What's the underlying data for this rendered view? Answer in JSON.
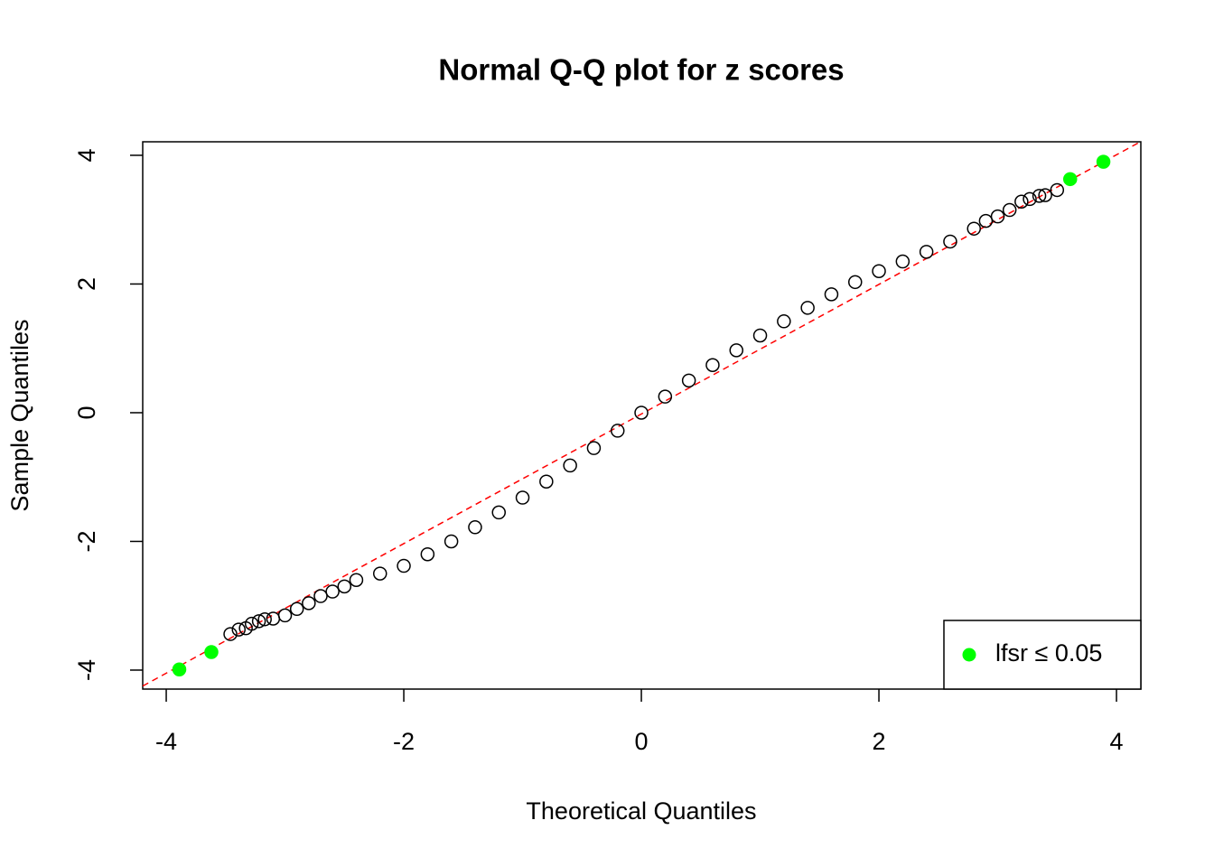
{
  "chart_data": {
    "type": "scatter",
    "title": "Normal Q-Q plot for z scores",
    "x_label": "Theoretical Quantiles",
    "y_label": "Sample Quantiles",
    "xlim": [
      -4.198,
      4.205
    ],
    "ylim": [
      -4.295,
      4.21
    ],
    "xticks": [
      -4,
      -2,
      0,
      2,
      4
    ],
    "yticks": [
      -4,
      -2,
      0,
      2,
      4
    ],
    "reference_line": {
      "intercept": -0.02,
      "slope": 1.007,
      "color": "#ff0000"
    },
    "legend_position": "bottomright",
    "series": [
      {
        "color": "#000000",
        "filled": false,
        "x": [
          -3.46,
          -3.39,
          -3.33,
          -3.28,
          -3.22,
          -3.17,
          -3.1,
          -3.0,
          -2.9,
          -2.8,
          -2.7,
          -2.6,
          -2.5,
          -2.4,
          -2.2,
          -2.0,
          -1.8,
          -1.6,
          -1.4,
          -1.2,
          -1.0,
          -0.8,
          -0.6,
          -0.4,
          -0.2,
          0,
          0.2,
          0.4,
          0.6,
          0.8,
          1.0,
          1.2,
          1.4,
          1.6,
          1.8,
          2.0,
          2.2,
          2.4,
          2.6,
          2.8,
          2.9,
          3.0,
          3.1,
          3.2,
          3.27,
          3.35,
          3.4,
          3.5
        ],
        "y": [
          -3.44,
          -3.37,
          -3.35,
          -3.28,
          -3.24,
          -3.21,
          -3.2,
          -3.15,
          -3.05,
          -2.96,
          -2.85,
          -2.78,
          -2.7,
          -2.6,
          -2.5,
          -2.38,
          -2.2,
          -2.0,
          -1.78,
          -1.55,
          -1.32,
          -1.07,
          -0.82,
          -0.55,
          -0.28,
          0,
          0.25,
          0.5,
          0.74,
          0.97,
          1.2,
          1.42,
          1.63,
          1.84,
          2.03,
          2.2,
          2.35,
          2.5,
          2.66,
          2.86,
          2.98,
          3.05,
          3.15,
          3.28,
          3.32,
          3.37,
          3.38,
          3.46
        ]
      },
      {
        "name": "lfsr  ≤ 0.05",
        "color": "#00ff00",
        "filled": true,
        "x": [
          -3.89,
          -3.62,
          3.61,
          3.89
        ],
        "y": [
          -3.99,
          -3.72,
          3.63,
          3.9
        ]
      }
    ]
  }
}
